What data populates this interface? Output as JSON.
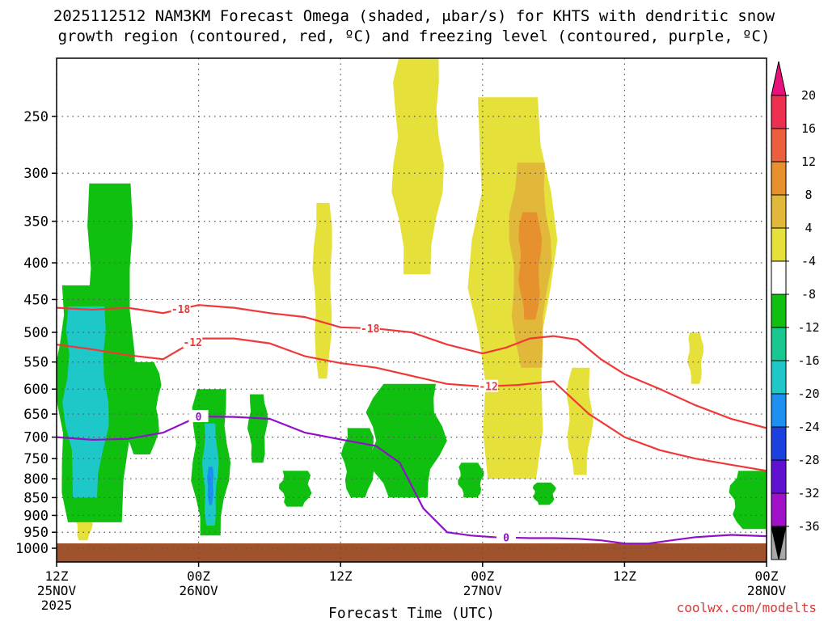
{
  "chart_data": {
    "type": "heatmap",
    "title_line1": "2025112512 NAM3KM Forecast Omega (shaded, μbar/s) for KHTS with dendritic snow",
    "title_line2": "growth region (contoured, red, ºC) and freezing level (contoured, purple, ºC)",
    "xlabel": "Forecast Time (UTC)",
    "credit": "coolwx.com/modelts",
    "x_range_hours": [
      0,
      60
    ],
    "x_ticks": [
      {
        "h": 0,
        "l1": "12Z",
        "l2": "25NOV",
        "l3": "2025"
      },
      {
        "h": 12,
        "l1": "00Z",
        "l2": "26NOV",
        "l3": ""
      },
      {
        "h": 24,
        "l1": "12Z",
        "l2": "",
        "l3": ""
      },
      {
        "h": 36,
        "l1": "00Z",
        "l2": "27NOV",
        "l3": ""
      },
      {
        "h": 48,
        "l1": "12Z",
        "l2": "",
        "l3": ""
      },
      {
        "h": 60,
        "l1": "00Z",
        "l2": "28NOV",
        "l3": ""
      }
    ],
    "y_ticks_hpa": [
      250,
      300,
      350,
      400,
      450,
      500,
      550,
      600,
      650,
      700,
      750,
      800,
      850,
      900,
      950,
      1000
    ],
    "colorbar": {
      "labels": [
        "20",
        "16",
        "12",
        "8",
        "4",
        "-4",
        "-8",
        "-12",
        "-16",
        "-20",
        "-24",
        "-28",
        "-32",
        "-36"
      ],
      "bins": [
        "#ee3050",
        "#ec5f3c",
        "#e6902e",
        "#e2b83a",
        "#e5e03a",
        "#ffffff",
        "#10c010",
        "#18c890",
        "#1ec8c8",
        "#1c90f0",
        "#1c40e0",
        "#6010d0",
        "#a010c8",
        "#a8a8a8"
      ],
      "top_color": "#e8107a",
      "bottom_color": "#000000"
    },
    "omega_regions": [
      {
        "value": 6,
        "color": "#e5e03a",
        "hour": 30.5,
        "p_top": 205,
        "p_bot": 415,
        "width_h": 4.0
      },
      {
        "value": 6,
        "color": "#e5e03a",
        "hour": 38.5,
        "p_top": 235,
        "p_bot": 800,
        "width_h": 6.5
      },
      {
        "value": 6,
        "color": "#e5e03a",
        "hour": 22.5,
        "p_top": 330,
        "p_bot": 580,
        "width_h": 1.5
      },
      {
        "value": 6,
        "color": "#e5e03a",
        "hour": 44.2,
        "p_top": 560,
        "p_bot": 790,
        "width_h": 2.0
      },
      {
        "value": 6,
        "color": "#e5e03a",
        "hour": 54.0,
        "p_top": 500,
        "p_bot": 590,
        "width_h": 1.2
      },
      {
        "value": 6,
        "color": "#e5e03a",
        "hour": 2.3,
        "p_top": 850,
        "p_bot": 975,
        "width_h": 1.4
      },
      {
        "value": 10,
        "color": "#e2b83a",
        "hour": 40.0,
        "p_top": 290,
        "p_bot": 560,
        "width_h": 3.2
      },
      {
        "value": 14,
        "color": "#e6902e",
        "hour": 40.0,
        "p_top": 340,
        "p_bot": 480,
        "width_h": 1.8
      },
      {
        "value": -6,
        "color": "#10c010",
        "hour": 4.5,
        "p_top": 310,
        "p_bot": 920,
        "width_h": 4.0
      },
      {
        "value": -6,
        "color": "#10c010",
        "hour": 2.0,
        "p_top": 430,
        "p_bot": 920,
        "width_h": 3.8
      },
      {
        "value": -6,
        "color": "#10c010",
        "hour": 7.2,
        "p_top": 550,
        "p_bot": 740,
        "width_h": 3.0
      },
      {
        "value": -6,
        "color": "#10c010",
        "hour": 13.0,
        "p_top": 600,
        "p_bot": 960,
        "width_h": 3.0
      },
      {
        "value": -6,
        "color": "#10c010",
        "hour": 17.0,
        "p_top": 610,
        "p_bot": 760,
        "width_h": 1.5
      },
      {
        "value": -6,
        "color": "#10c010",
        "hour": 25.5,
        "p_top": 680,
        "p_bot": 850,
        "width_h": 2.5
      },
      {
        "value": -6,
        "color": "#10c010",
        "hour": 29.5,
        "p_top": 590,
        "p_bot": 850,
        "width_h": 6.0
      },
      {
        "value": -6,
        "color": "#10c010",
        "hour": 35.0,
        "p_top": 760,
        "p_bot": 850,
        "width_h": 2.0
      },
      {
        "value": -6,
        "color": "#10c010",
        "hour": 20.2,
        "p_top": 780,
        "p_bot": 875,
        "width_h": 2.5
      },
      {
        "value": -6,
        "color": "#10c010",
        "hour": 58.8,
        "p_top": 780,
        "p_bot": 940,
        "width_h": 3.5
      },
      {
        "value": -6,
        "color": "#10c010",
        "hour": 41.2,
        "p_top": 810,
        "p_bot": 870,
        "width_h": 1.8
      },
      {
        "value": -14,
        "color": "#1ec8c8",
        "hour": 2.5,
        "p_top": 460,
        "p_bot": 850,
        "width_h": 3.5
      },
      {
        "value": -14,
        "color": "#1ec8c8",
        "hour": 13.0,
        "p_top": 670,
        "p_bot": 930,
        "width_h": 1.2
      },
      {
        "value": -18,
        "color": "#1c90f0",
        "hour": 13.0,
        "p_top": 770,
        "p_bot": 870,
        "width_h": 0.5
      }
    ],
    "dgz_minus12": {
      "label": "-12",
      "color": "#f03838",
      "hours": [
        0,
        3,
        6,
        9,
        12,
        15,
        18,
        21,
        24,
        27,
        30,
        33,
        36,
        39,
        42,
        45,
        48,
        51,
        54,
        57,
        60
      ],
      "p": [
        520,
        528,
        538,
        545,
        510,
        510,
        518,
        540,
        552,
        560,
        575,
        590,
        595,
        592,
        585,
        650,
        700,
        730,
        750,
        765,
        780
      ]
    },
    "dgz_minus18": {
      "label": "-18",
      "color": "#f03838",
      "hours": [
        0,
        3,
        6,
        9,
        12,
        15,
        18,
        21,
        24,
        27,
        30,
        33,
        36,
        38,
        40,
        42,
        44,
        46,
        48,
        51,
        54,
        57,
        60
      ],
      "p": [
        462,
        465,
        462,
        470,
        458,
        462,
        470,
        476,
        492,
        494,
        500,
        520,
        535,
        525,
        510,
        506,
        512,
        545,
        572,
        600,
        632,
        660,
        680
      ]
    },
    "freezing_level": {
      "label": "0",
      "color": "#9010c8",
      "hours": [
        0,
        3,
        6,
        9,
        12,
        15,
        18,
        21,
        24,
        27,
        29,
        31,
        33,
        35,
        37,
        40,
        42,
        44,
        46,
        48,
        50,
        52,
        54,
        57,
        60
      ],
      "p": [
        700,
        706,
        704,
        690,
        655,
        656,
        660,
        690,
        705,
        720,
        760,
        880,
        950,
        960,
        965,
        968,
        968,
        970,
        975,
        985,
        985,
        975,
        965,
        958,
        962
      ]
    },
    "ground_color": "#a0522d"
  }
}
